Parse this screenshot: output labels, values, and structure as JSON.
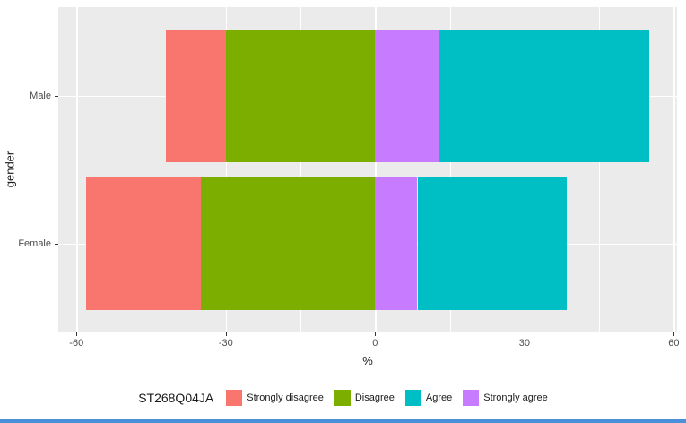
{
  "chart_data": {
    "type": "bar",
    "variant": "diverging-stacked-horizontal",
    "title": "",
    "xlabel": "%",
    "ylabel": "gender",
    "categories": [
      "Male",
      "Female"
    ],
    "x_ticks": [
      -60,
      -30,
      0,
      30,
      60
    ],
    "x_minor_ticks": [
      -45,
      -15,
      15,
      45
    ],
    "xlim": [
      -63.65,
      60.65
    ],
    "series": [
      {
        "name": "Strongly disagree",
        "color": "#F8766D",
        "values": [
          12,
          23
        ]
      },
      {
        "name": "Disagree",
        "color": "#7CAE00",
        "values": [
          30,
          35
        ]
      },
      {
        "name": "Agree",
        "color": "#00BFC4",
        "values": [
          42,
          30
        ]
      },
      {
        "name": "Strongly agree",
        "color": "#C77CFF",
        "values": [
          13,
          8.5
        ]
      }
    ],
    "bars": [
      {
        "category": "Male",
        "segments": [
          {
            "label": "Strongly disagree",
            "from": -42,
            "to": -30
          },
          {
            "label": "Disagree",
            "from": -30,
            "to": 0
          },
          {
            "label": "Strongly agree",
            "from": 0,
            "to": 13
          },
          {
            "label": "Agree",
            "from": 13,
            "to": 55
          }
        ]
      },
      {
        "category": "Female",
        "segments": [
          {
            "label": "Strongly disagree",
            "from": -58,
            "to": -35
          },
          {
            "label": "Disagree",
            "from": -35,
            "to": 0
          },
          {
            "label": "Strongly agree",
            "from": 0,
            "to": 8.5
          },
          {
            "label": "Agree",
            "from": 8.5,
            "to": 38.5
          }
        ]
      }
    ],
    "legend": {
      "title": "ST268Q04JA",
      "position": "bottom",
      "entries": [
        {
          "label": "Strongly disagree",
          "color": "#F8766D"
        },
        {
          "label": "Disagree",
          "color": "#7CAE00"
        },
        {
          "label": "Agree",
          "color": "#00BFC4"
        },
        {
          "label": "Strongly agree",
          "color": "#C77CFF"
        }
      ]
    },
    "panel_background": "#EBEBEB",
    "gridline_color": "#FFFFFF",
    "grid": true
  },
  "decor": {
    "bottom_strip_color": "#4A90D9"
  }
}
